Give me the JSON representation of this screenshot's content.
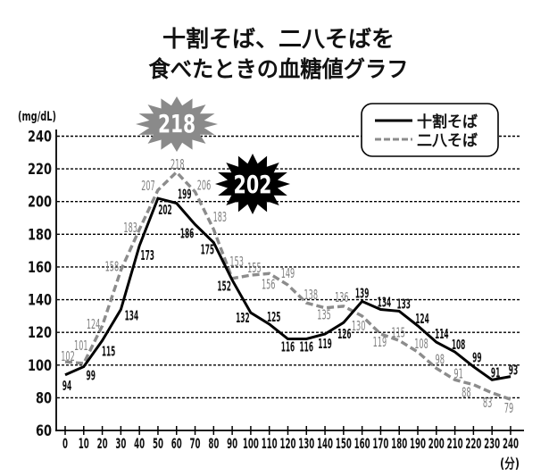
{
  "title": {
    "line1": "十割そば、二八そばを",
    "line2": "食べたときの血糖値グラフ"
  },
  "legend": {
    "items": [
      {
        "label": "十割そば",
        "style": "solid"
      },
      {
        "label": "二八そば",
        "style": "dashed"
      }
    ]
  },
  "callouts": {
    "nihachi_peak": "218",
    "juwari_peak": "202"
  },
  "colors": {
    "solid_series": "#000000",
    "dashed_series": "#8c8c8c",
    "nihachi_callout": "#8a8a8a",
    "juwari_callout": "#000000",
    "grid": "#000000",
    "background": "#ffffff"
  },
  "chart_data": {
    "type": "line",
    "title": "十割そば、二八そばを食べたときの血糖値グラフ",
    "xlabel": "(分)",
    "ylabel": "(mg/dL)",
    "x": [
      0,
      10,
      20,
      30,
      40,
      50,
      60,
      70,
      80,
      90,
      100,
      110,
      120,
      130,
      140,
      150,
      160,
      170,
      180,
      190,
      200,
      210,
      220,
      230,
      240
    ],
    "xticks": [
      "0",
      "10",
      "20",
      "30",
      "40",
      "50",
      "60",
      "70",
      "80",
      "90",
      "100",
      "110",
      "120",
      "130",
      "140",
      "150",
      "160",
      "170",
      "180",
      "190",
      "200",
      "210",
      "220",
      "230",
      "240"
    ],
    "yticks": [
      60,
      80,
      100,
      120,
      140,
      160,
      180,
      200,
      220,
      240
    ],
    "xlim": [
      0,
      240
    ],
    "ylim": [
      60,
      240
    ],
    "grid": true,
    "grid_style": "dotted horizontal",
    "legend_position": "top-right",
    "series": [
      {
        "name": "十割そば",
        "style": "solid",
        "color": "#000000",
        "values": [
          94,
          99,
          115,
          134,
          173,
          202,
          199,
          186,
          175,
          152,
          132,
          125,
          116,
          116,
          119,
          126,
          139,
          134,
          133,
          124,
          114,
          108,
          99,
          91,
          93
        ]
      },
      {
        "name": "二八そば",
        "style": "dashed",
        "color": "#8c8c8c",
        "values": [
          102,
          101,
          124,
          158,
          183,
          207,
          218,
          206,
          183,
          153,
          155,
          156,
          149,
          138,
          135,
          136,
          130,
          119,
          115,
          108,
          98,
          91,
          88,
          83,
          79
        ]
      }
    ],
    "annotations": [
      {
        "text": "218",
        "series": "二八そば",
        "shape": "gray starburst",
        "meaning": "peak value"
      },
      {
        "text": "202",
        "series": "十割そば",
        "shape": "black starburst",
        "meaning": "peak value"
      }
    ]
  }
}
